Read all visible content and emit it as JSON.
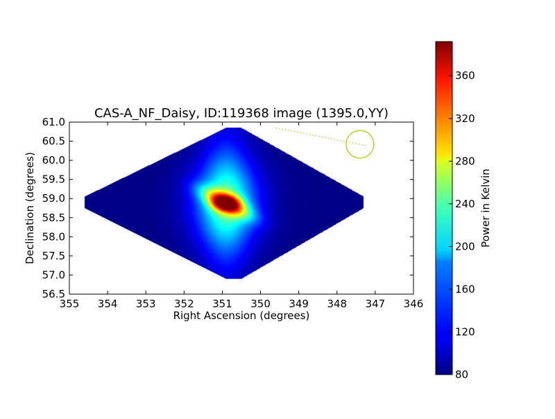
{
  "chart_data": {
    "type": "heatmap",
    "title": "CAS-A_NF_Daisy, ID:119368 image (1395.0,YY)",
    "xlabel": "Right Ascension (degrees)",
    "ylabel": "Declination (degrees)",
    "xlim": [
      355,
      346
    ],
    "ylim": [
      56.5,
      61.0
    ],
    "x_ticks": [
      "355",
      "354",
      "353",
      "352",
      "351",
      "350",
      "349",
      "348",
      "347",
      "346"
    ],
    "y_ticks": [
      "56.5",
      "57.0",
      "57.5",
      "58.0",
      "58.5",
      "59.0",
      "59.5",
      "60.0",
      "60.5",
      "61.0"
    ],
    "colorbar": {
      "label": "Power in Kelvin",
      "range": [
        80,
        392
      ],
      "ticks": [
        "80",
        "120",
        "160",
        "200",
        "240",
        "280",
        "320",
        "360"
      ],
      "colormap": "jet"
    },
    "map": {
      "background_value": 82,
      "footprint_vertices": [
        [
          350.9,
          60.85
        ],
        [
          350.5,
          60.85
        ],
        [
          347.3,
          59.05
        ],
        [
          347.3,
          58.75
        ],
        [
          350.5,
          56.9
        ],
        [
          350.9,
          56.9
        ],
        [
          354.6,
          58.75
        ],
        [
          354.6,
          59.05
        ]
      ],
      "peak_ra": 350.9,
      "peak_dec": 58.88,
      "peak_value": 392
    },
    "overlays": {
      "circle": {
        "ra": 347.4,
        "dec": 60.42,
        "color": "#bfbf00"
      },
      "dotted_line": {
        "from": [
          349.6,
          60.85
        ],
        "to": [
          347.2,
          60.38
        ],
        "color": "#bfbf00"
      }
    }
  }
}
